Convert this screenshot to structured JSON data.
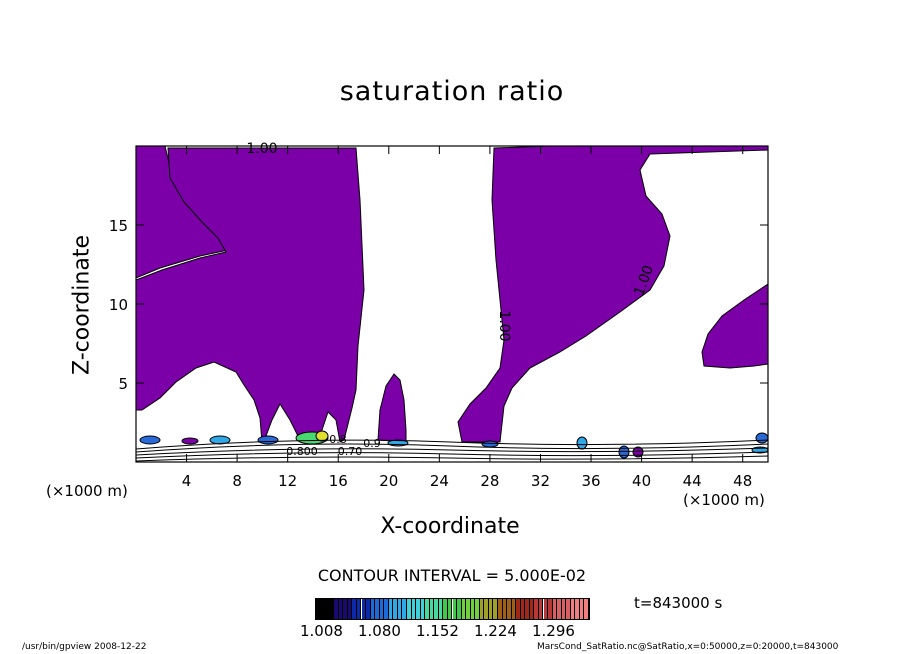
{
  "chart_data": {
    "type": "heatmap",
    "title": "saturation ratio",
    "xlabel": "X-coordinate",
    "ylabel": "Z-coordinate",
    "x_unit_label": "(×1000 m)",
    "xlim": [
      0,
      50
    ],
    "ylim": [
      0,
      20
    ],
    "x_ticks": [
      4,
      8,
      12,
      16,
      20,
      24,
      28,
      32,
      36,
      40,
      44,
      48
    ],
    "y_ticks": [
      5,
      10,
      15
    ],
    "contour_interval_text": "CONTOUR INTERVAL = 5.000E-02",
    "time_text": "t=843000 s",
    "contour_labels": [
      "1.00",
      "1.00",
      "1.00",
      "0.800",
      "0.70",
      "0.8",
      "0.9"
    ],
    "fill_color": "#7b00a8",
    "colorbar": {
      "ticks": [
        "1.008",
        "1.080",
        "1.152",
        "1.224",
        "1.296"
      ],
      "colors": [
        "#000000",
        "#1a0a6e",
        "#0a2aa8",
        "#1e6ad8",
        "#30a8e8",
        "#40d0d8",
        "#48d8a0",
        "#40c848",
        "#70d040",
        "#a0a028",
        "#a06018",
        "#a02818",
        "#b83838",
        "#d86060",
        "#f08080"
      ]
    }
  },
  "footer": {
    "left": "/usr/bin/gpview   2008-12-22",
    "right": "MarsCond_SatRatio.nc@SatRatio,x=0:50000,z=0:20000,t=843000"
  }
}
